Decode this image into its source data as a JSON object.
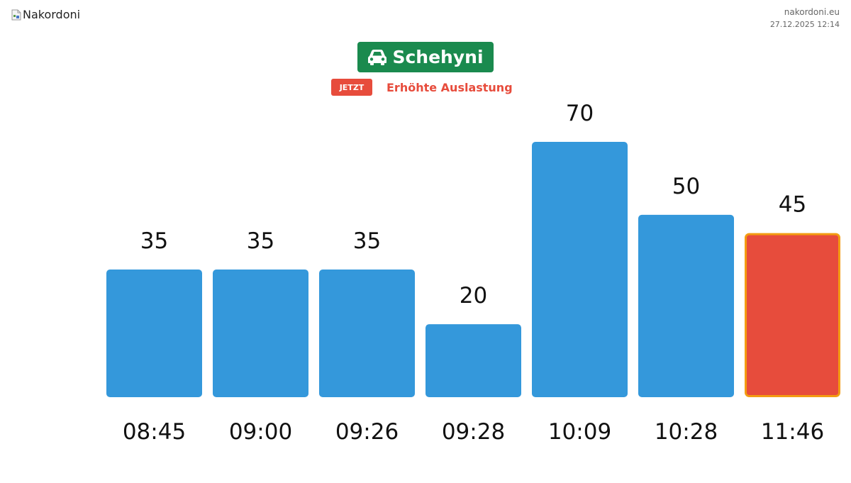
{
  "header": {
    "logo_alt": "Nakordoni",
    "site": "nakordoni.eu",
    "timestamp": "27.12.2025 12:14"
  },
  "checkpoint": {
    "name": "Schehyni",
    "icon": "car-icon",
    "color": "#1a8a4e"
  },
  "status": {
    "tag": "JETZT",
    "text": "Erhöhte Auslastung",
    "color": "#e74c3c"
  },
  "chart_data": {
    "type": "bar",
    "categories": [
      "08:45",
      "09:00",
      "09:26",
      "09:28",
      "10:09",
      "10:28",
      "11:46"
    ],
    "values": [
      35,
      35,
      35,
      20,
      70,
      50,
      45
    ],
    "highlight_index": 6,
    "bar_color": "#3498db",
    "highlight_color": "#e74c3c",
    "highlight_border_color": "#f39c12",
    "title": "",
    "xlabel": "",
    "ylabel": "",
    "ylim": [
      0,
      70
    ],
    "grid": false
  }
}
